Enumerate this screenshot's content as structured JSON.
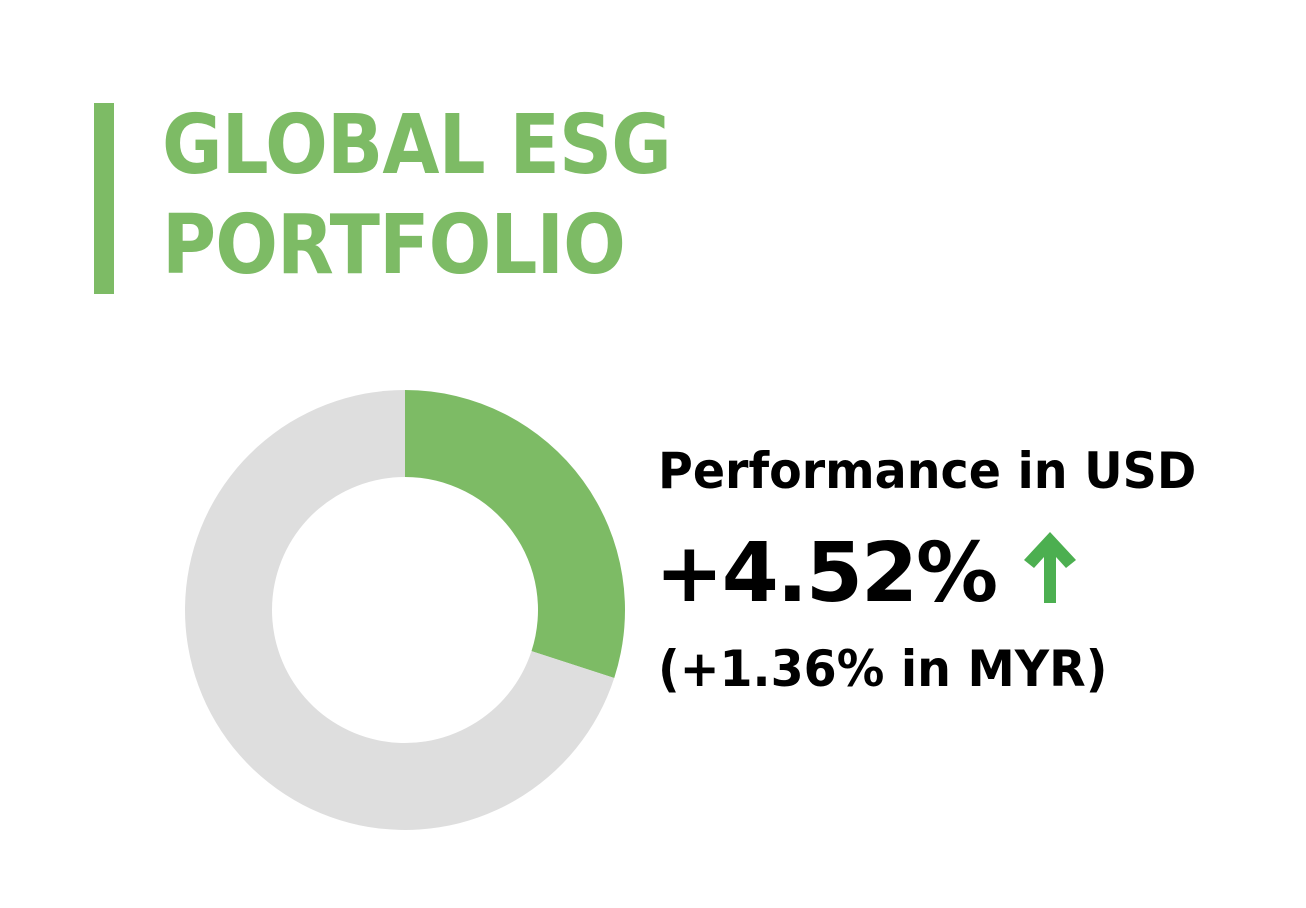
{
  "title": {
    "line1": "GLOBAL ESG",
    "line2": "PORTFOLIO"
  },
  "performance": {
    "label": "Performance in USD",
    "value": "+4.52%",
    "secondary": "(+1.36% in MYR)",
    "trend_icon": "arrow-up-icon"
  },
  "colors": {
    "accent": "#7dbb65",
    "arrow": "#4caf50",
    "track": "#dedede",
    "text": "#000000"
  },
  "chart_data": {
    "type": "pie",
    "style": "donut",
    "values": [
      30,
      70
    ],
    "colors": [
      "#7dbb65",
      "#dedede"
    ],
    "start": "top",
    "direction": "clockwise"
  }
}
